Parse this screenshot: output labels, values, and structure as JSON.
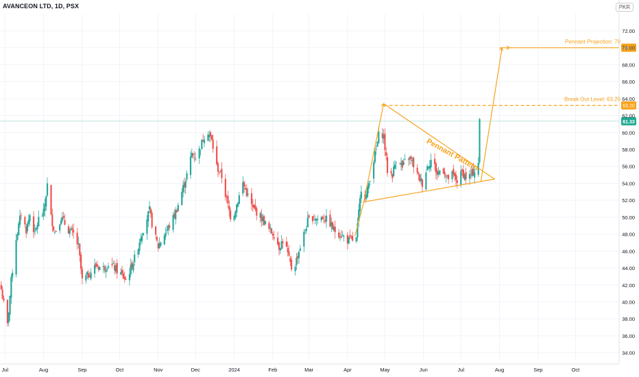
{
  "chart_data": {
    "type": "candlestick",
    "symbol_title": "AVANCEON LTD, 1D, PSX",
    "currency": "PKR",
    "y_axis": {
      "min": 33.0,
      "max": 73.0,
      "ticks": [
        "72.00",
        "70.00",
        "68.00",
        "66.00",
        "64.00",
        "62.00",
        "60.00",
        "58.00",
        "56.00",
        "54.00",
        "52.00",
        "50.00",
        "48.00",
        "46.00",
        "44.00",
        "42.00",
        "40.00",
        "38.00",
        "36.00",
        "34.00"
      ]
    },
    "x_axis": {
      "labels": [
        "Jul",
        "Aug",
        "Sep",
        "Oct",
        "Nov",
        "Dec",
        "2024",
        "Feb",
        "Mar",
        "Apr",
        "May",
        "Jun",
        "Jul",
        "Aug",
        "Sep",
        "Oct"
      ],
      "start": "2023-06-27",
      "end": "2024-11-05"
    },
    "colors": {
      "up": "#26a69a",
      "down": "#ef5350",
      "annotation": "#f7a21b",
      "current_price": "#22ab94"
    },
    "current_price": "61.33",
    "price_labels": [
      "70.00",
      "63.20"
    ],
    "annotations": {
      "projection": "Pennant Projection: 70",
      "breakout": "Break Out Level: 63.20",
      "pattern": "Pennant Pattern"
    },
    "path_anchors": [
      [
        "2023-06-28",
        41.5
      ],
      [
        "2023-07-03",
        37.2
      ],
      [
        "2023-07-06",
        42.5
      ],
      [
        "2023-07-10",
        47.5
      ],
      [
        "2023-07-14",
        50.5
      ],
      [
        "2023-07-18",
        48.5
      ],
      [
        "2023-07-21",
        50.3
      ],
      [
        "2023-07-25",
        48.0
      ],
      [
        "2023-07-28",
        49.8
      ],
      [
        "2023-08-01",
        50.5
      ],
      [
        "2023-08-04",
        53.8
      ],
      [
        "2023-08-07",
        50.0
      ],
      [
        "2023-08-10",
        48.2
      ],
      [
        "2023-08-15",
        50.0
      ],
      [
        "2023-08-21",
        48.5
      ],
      [
        "2023-08-25",
        48.0
      ],
      [
        "2023-08-29",
        46.5
      ],
      [
        "2023-09-01",
        42.5
      ],
      [
        "2023-09-06",
        43.2
      ],
      [
        "2023-09-12",
        44.3
      ],
      [
        "2023-09-18",
        44.0
      ],
      [
        "2023-09-22",
        44.5
      ],
      [
        "2023-09-27",
        44.0
      ],
      [
        "2023-10-02",
        43.3
      ],
      [
        "2023-10-06",
        42.6
      ],
      [
        "2023-10-10",
        44.0
      ],
      [
        "2023-10-14",
        45.5
      ],
      [
        "2023-10-18",
        47.8
      ],
      [
        "2023-10-21",
        49.0
      ],
      [
        "2023-10-25",
        50.8
      ],
      [
        "2023-10-28",
        48.5
      ],
      [
        "2023-11-01",
        46.5
      ],
      [
        "2023-11-04",
        47.5
      ],
      [
        "2023-11-08",
        48.5
      ],
      [
        "2023-11-12",
        49.5
      ],
      [
        "2023-11-16",
        51.0
      ],
      [
        "2023-11-20",
        53.0
      ],
      [
        "2023-11-24",
        55.0
      ],
      [
        "2023-11-28",
        57.5
      ],
      [
        "2023-12-02",
        57.0
      ],
      [
        "2023-12-06",
        58.8
      ],
      [
        "2023-12-10",
        60.5
      ],
      [
        "2023-12-14",
        59.0
      ],
      [
        "2023-12-18",
        56.0
      ],
      [
        "2023-12-22",
        54.8
      ],
      [
        "2023-12-26",
        52.0
      ],
      [
        "2023-12-30",
        49.5
      ],
      [
        "2024-01-04",
        52.0
      ],
      [
        "2024-01-08",
        54.0
      ],
      [
        "2024-01-12",
        52.5
      ],
      [
        "2024-01-16",
        51.0
      ],
      [
        "2024-01-20",
        50.5
      ],
      [
        "2024-01-25",
        49.5
      ],
      [
        "2024-01-29",
        48.5
      ],
      [
        "2024-02-02",
        48.0
      ],
      [
        "2024-02-06",
        46.5
      ],
      [
        "2024-02-10",
        47.5
      ],
      [
        "2024-02-14",
        45.0
      ],
      [
        "2024-02-17",
        43.5
      ],
      [
        "2024-02-21",
        45.5
      ],
      [
        "2024-02-25",
        47.5
      ],
      [
        "2024-02-29",
        49.5
      ],
      [
        "2024-03-04",
        50.0
      ],
      [
        "2024-03-08",
        49.8
      ],
      [
        "2024-03-12",
        50.0
      ],
      [
        "2024-03-17",
        49.5
      ],
      [
        "2024-03-21",
        48.5
      ],
      [
        "2024-03-26",
        48.0
      ],
      [
        "2024-04-01",
        47.3
      ],
      [
        "2024-04-05",
        47.3
      ],
      [
        "2024-04-08",
        47.4
      ],
      [
        "2024-04-12",
        53.5
      ],
      [
        "2024-04-16",
        52.5
      ],
      [
        "2024-04-20",
        55.5
      ],
      [
        "2024-04-24",
        58.0
      ],
      [
        "2024-04-27",
        60.5
      ],
      [
        "2024-04-30",
        59.5
      ],
      [
        "2024-05-03",
        55.5
      ],
      [
        "2024-05-07",
        55.0
      ],
      [
        "2024-05-11",
        57.5
      ],
      [
        "2024-05-15",
        55.8
      ],
      [
        "2024-05-19",
        57.2
      ],
      [
        "2024-05-23",
        56.5
      ],
      [
        "2024-05-27",
        55.0
      ],
      [
        "2024-05-31",
        54.0
      ],
      [
        "2024-06-04",
        56.0
      ],
      [
        "2024-06-08",
        57.0
      ],
      [
        "2024-06-12",
        55.0
      ],
      [
        "2024-06-16",
        56.0
      ],
      [
        "2024-06-20",
        54.5
      ],
      [
        "2024-06-24",
        55.0
      ],
      [
        "2024-06-28",
        54.3
      ],
      [
        "2024-07-02",
        55.3
      ],
      [
        "2024-07-06",
        54.5
      ],
      [
        "2024-07-09",
        55.0
      ],
      [
        "2024-07-12",
        55.5
      ],
      [
        "2024-07-15",
        56.5
      ],
      [
        "2024-07-16",
        61.33
      ]
    ]
  }
}
